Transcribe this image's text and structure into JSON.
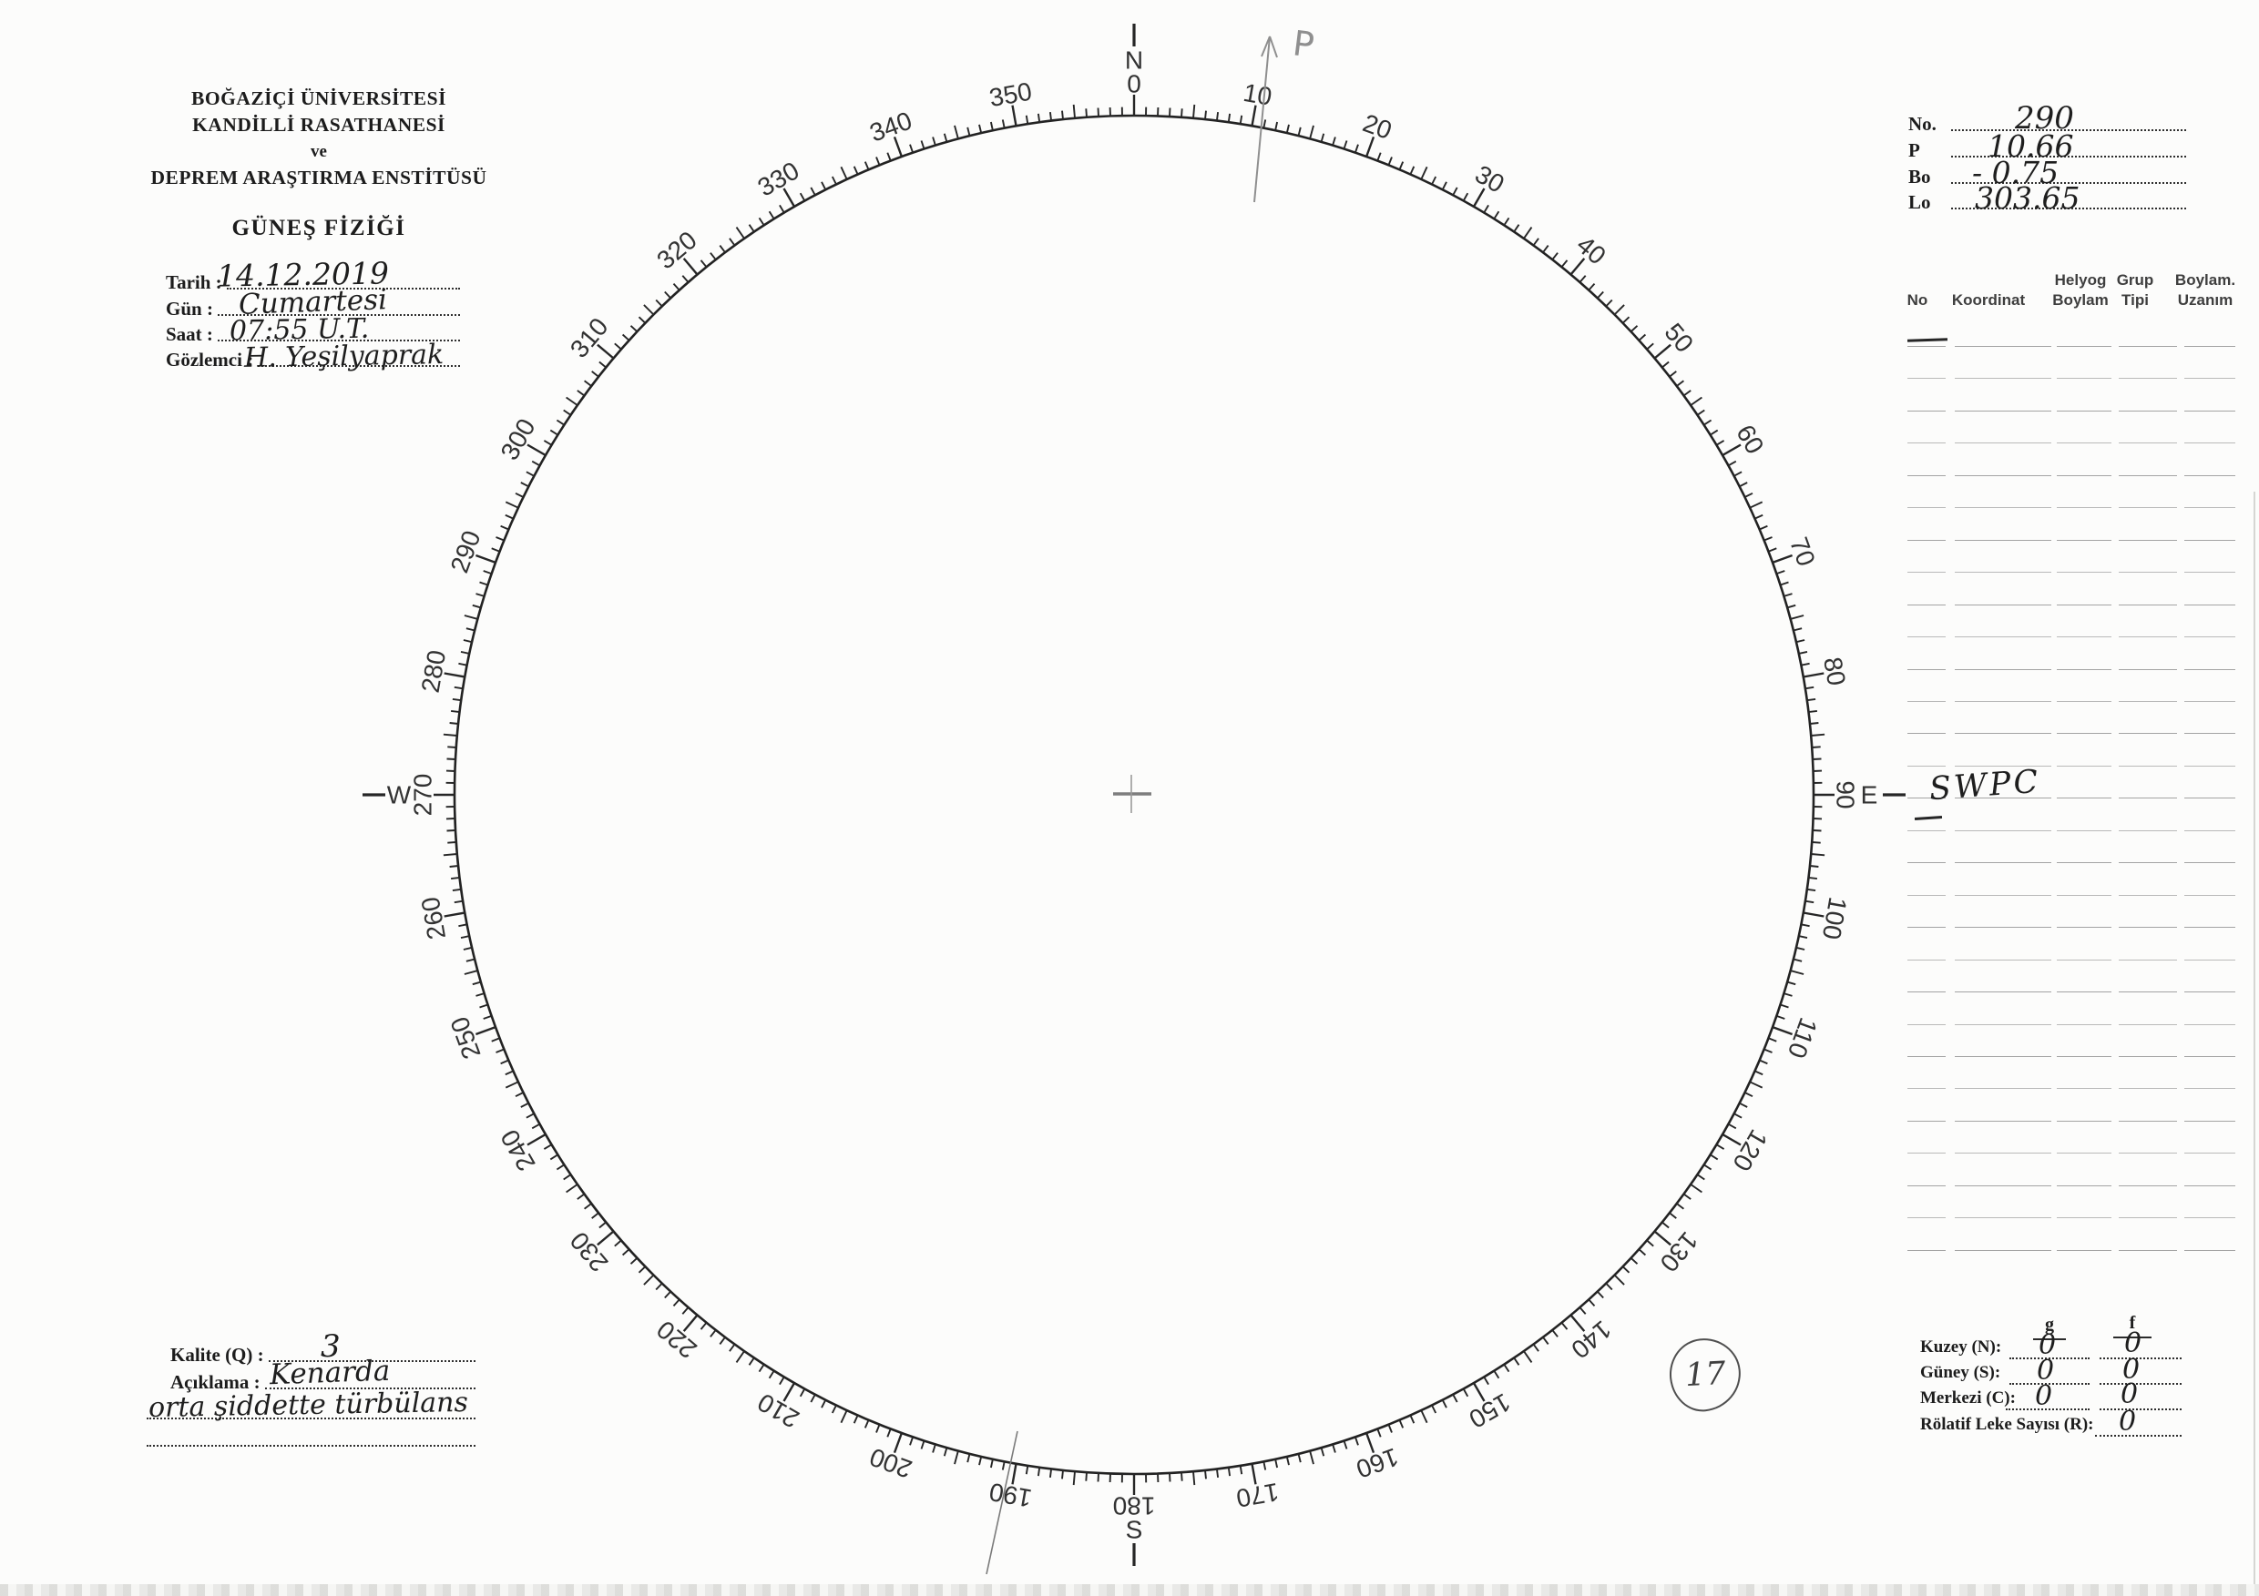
{
  "institution": {
    "lines": [
      "BOĞAZİÇİ ÜNİVERSİTESİ",
      "KANDİLLİ RASATHANESİ",
      "ve",
      "DEPREM ARAŞTIRMA ENSTİTÜSÜ"
    ],
    "form_title": "GÜNEŞ FİZİĞİ"
  },
  "observation": {
    "tarih_label": "Tarih :",
    "tarih_value": "14.12.2019",
    "gun_label": "Gün :",
    "gun_value": "Cumartesi",
    "saat_label": "Saat :",
    "saat_value": "07:55 U.T.",
    "gozlemci_label": "Gözlemci :",
    "gozlemci_value": "H. Yeşilyaprak"
  },
  "ephemeris": {
    "no_label": "No.",
    "no_value": "290",
    "p_label": "P",
    "p_value": "10.66",
    "bo_label": "Bo",
    "bo_value": "- 0.75",
    "lo_label": "Lo",
    "lo_value": "303.65"
  },
  "group_table": {
    "headers": [
      {
        "line1": "No"
      },
      {
        "line1": "Koordinat"
      },
      {
        "line1": "Helyog",
        "line2": "Boylam"
      },
      {
        "line1": "Grup",
        "line2": "Tipi"
      },
      {
        "line1": "Boylam.",
        "line2": "Uzanım"
      }
    ],
    "row_count": 29,
    "annotations": {
      "source_note": "SWPC"
    }
  },
  "quality": {
    "kalite_label": "Kalite (Q) :",
    "kalite_value": "3",
    "aciklama_label": "Açıklama :",
    "aciklama_line1": "Kenarda",
    "aciklama_line2": "orta şiddette türbülans"
  },
  "counts": {
    "g_header": "g",
    "f_header": "f",
    "kuzey_label": "Kuzey (N):",
    "kuzey_g": "0",
    "kuzey_f": "0",
    "guney_label": "Güney (S):",
    "guney_g": "0",
    "guney_f": "0",
    "merkezi_label": "Merkezi (C):",
    "merkezi_g": "0",
    "merkezi_f": "0",
    "rolatif_label": "Rölatif Leke Sayısı (R):",
    "rolatif_value": "0",
    "circled_number": "17"
  },
  "disk": {
    "degree_labels": [
      0,
      10,
      20,
      30,
      40,
      50,
      60,
      70,
      80,
      90,
      100,
      110,
      120,
      130,
      140,
      150,
      160,
      170,
      180,
      190,
      200,
      210,
      220,
      230,
      240,
      250,
      260,
      270,
      280,
      290,
      300,
      310,
      320,
      330,
      340,
      350
    ],
    "cardinals": [
      {
        "letter": "N",
        "deg": 0
      },
      {
        "letter": "E",
        "deg": 90
      },
      {
        "letter": "S",
        "deg": 180
      },
      {
        "letter": "W",
        "deg": 270
      }
    ],
    "pencil_note": "P"
  }
}
